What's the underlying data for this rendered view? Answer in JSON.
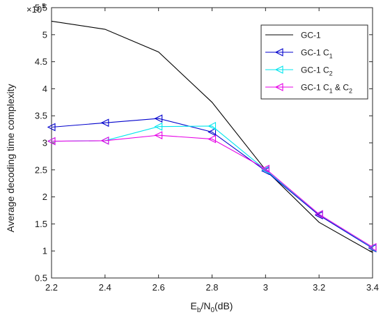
{
  "chart_data": {
    "type": "line",
    "xlabel_main": "E",
    "xlabel_sub1": "b",
    "xlabel_mid": "/N",
    "xlabel_sub2": "0",
    "xlabel_tail": "(dB)",
    "ylabel": "Average decoding time complexity",
    "y_multiplier_base": "×10",
    "y_multiplier_exp": "5",
    "xlim": [
      2.2,
      3.4
    ],
    "ylim": [
      0.5,
      5.5
    ],
    "x_ticks": [
      "2.2",
      "2.4",
      "2.6",
      "2.8",
      "3",
      "3.2",
      "3.4"
    ],
    "y_ticks": [
      "0.5",
      "1",
      "1.5",
      "2",
      "2.5",
      "3",
      "3.5",
      "4",
      "4.5",
      "5",
      "5.5"
    ],
    "grid": false,
    "legend_position": "top-right",
    "x": [
      2.2,
      2.4,
      2.6,
      2.8,
      3.0,
      3.2,
      3.4
    ],
    "series": [
      {
        "name": "GC-1",
        "label_main": "GC-1",
        "label_sub1": "",
        "label_mid": "",
        "label_sub2": "",
        "color": "#000000",
        "marker": "none",
        "values": [
          5.25,
          5.1,
          4.68,
          3.75,
          2.5,
          1.53,
          0.97
        ]
      },
      {
        "name": "GC-1 C1",
        "label_main": "GC-1 C",
        "label_sub1": "1",
        "label_mid": "",
        "label_sub2": "",
        "color": "#0000cc",
        "marker": "triangle-left",
        "values": [
          3.29,
          3.37,
          3.45,
          3.2,
          2.48,
          1.66,
          1.05
        ]
      },
      {
        "name": "GC-1 C2",
        "label_main": "GC-1 C",
        "label_sub1": "2",
        "label_mid": "",
        "label_sub2": "",
        "color": "#00e5ee",
        "marker": "triangle-left",
        "values": [
          3.03,
          3.04,
          3.3,
          3.31,
          2.5,
          1.68,
          1.06
        ]
      },
      {
        "name": "GC-1 C1 & C2",
        "label_main": "GC-1 C",
        "label_sub1": "1",
        "label_mid": " & C",
        "label_sub2": "2",
        "color": "#e600e6",
        "marker": "triangle-left",
        "values": [
          3.03,
          3.04,
          3.14,
          3.07,
          2.52,
          1.68,
          1.07
        ]
      }
    ]
  }
}
